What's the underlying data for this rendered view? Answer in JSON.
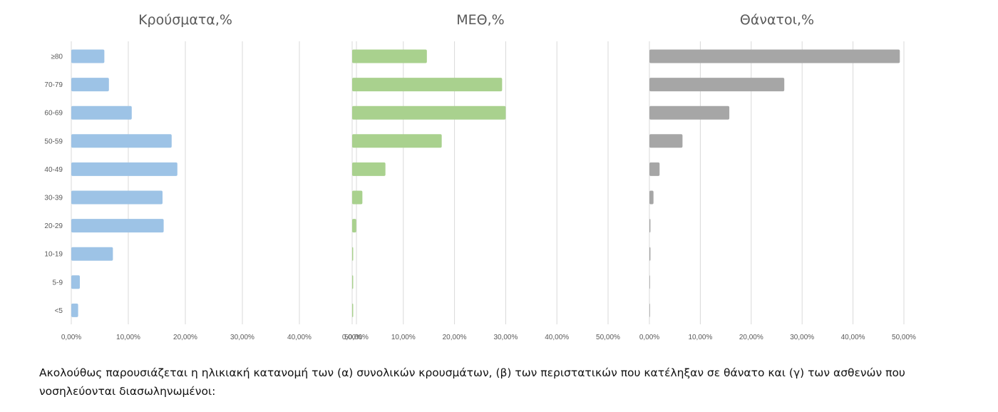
{
  "chart_data": [
    {
      "type": "bar",
      "orientation": "horizontal",
      "title": "Κρούσματα,%",
      "categories": [
        "≥80",
        "70-79",
        "60-69",
        "50-59",
        "40-49",
        "30-39",
        "20-29",
        "10-19",
        "5-9",
        "<5"
      ],
      "values": [
        5.8,
        6.6,
        10.6,
        17.6,
        18.6,
        16.0,
        16.2,
        7.3,
        1.5,
        1.2
      ],
      "xlim": [
        0,
        50
      ],
      "xticks": [
        "0,00%",
        "10,00%",
        "20,00%",
        "30,00%",
        "40,00%",
        "50,00%"
      ],
      "color": "#9dc3e6",
      "grid": true
    },
    {
      "type": "bar",
      "orientation": "horizontal",
      "title": "ΜΕΘ,%",
      "categories": [
        "≥80",
        "70-79",
        "60-69",
        "50-59",
        "40-49",
        "30-39",
        "20-29",
        "10-19",
        "5-9",
        "<5"
      ],
      "values": [
        14.6,
        29.3,
        30.0,
        17.5,
        6.5,
        2.0,
        0.8,
        0.2,
        0.2,
        0.2
      ],
      "xlim": [
        0,
        50
      ],
      "xticks": [
        "0,00%",
        "10,00%",
        "20,00%",
        "30,00%",
        "40,00%",
        "50,00%"
      ],
      "color": "#a9d18e",
      "grid": true
    },
    {
      "type": "bar",
      "orientation": "horizontal",
      "title": "Θάνατοι,%",
      "categories": [
        "≥80",
        "70-79",
        "60-69",
        "50-59",
        "40-49",
        "30-39",
        "20-29",
        "10-19",
        "5-9",
        "<5"
      ],
      "values": [
        49.2,
        26.5,
        15.7,
        6.5,
        2.0,
        0.8,
        0.2,
        0.2,
        0,
        0
      ],
      "xlim": [
        0,
        50
      ],
      "xticks": [
        "0,00%",
        "10,00%",
        "20,00%",
        "30,00%",
        "40,00%",
        "50,00%"
      ],
      "color": "#a6a6a6",
      "grid": true
    }
  ],
  "caption": "Ακολούθως παρουσιάζεται η ηλικιακή κατανομή των (α) συνολικών κρουσμάτων, (β) των περιστατικών που κατέληξαν σε θάνατο και (γ) των ασθενών που νοσηλεύονται διασωληνωμένοι:"
}
